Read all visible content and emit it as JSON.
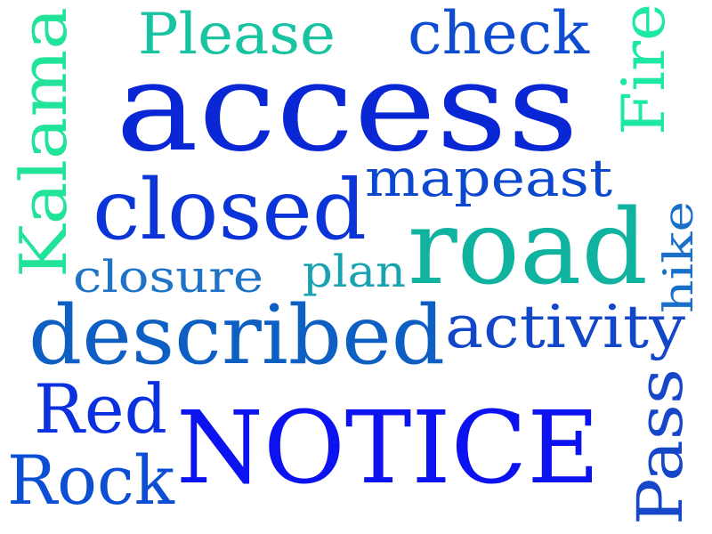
{
  "words": [
    {
      "id": "access",
      "text": "access",
      "color": "#0a27d6"
    },
    {
      "id": "notice",
      "text": "NOTICE",
      "color": "#0d12f0"
    },
    {
      "id": "road",
      "text": "road",
      "color": "#10b3a0"
    },
    {
      "id": "described",
      "text": "described",
      "color": "#0d5fc4"
    },
    {
      "id": "closed",
      "text": "closed",
      "color": "#0b35d8"
    },
    {
      "id": "activity",
      "text": "activity",
      "color": "#1347c9"
    },
    {
      "id": "kalama",
      "text": "Kalama",
      "color": "#22e39a"
    },
    {
      "id": "please",
      "text": "Please",
      "color": "#17c3a0"
    },
    {
      "id": "check",
      "text": "check",
      "color": "#0e4cd1"
    },
    {
      "id": "fire",
      "text": "Fire",
      "color": "#1ee9a4"
    },
    {
      "id": "mapeast",
      "text": "mapeast",
      "color": "#0b47cf"
    },
    {
      "id": "closure",
      "text": "closure",
      "color": "#1e73c8"
    },
    {
      "id": "plan",
      "text": "plan",
      "color": "#19a3b0"
    },
    {
      "id": "hike",
      "text": "hike",
      "color": "#1a6fc8"
    },
    {
      "id": "red",
      "text": "Red",
      "color": "#0b30e0"
    },
    {
      "id": "rock",
      "text": "Rock",
      "color": "#0c4fd4"
    },
    {
      "id": "pass",
      "text": "Pass",
      "color": "#1747c9"
    }
  ]
}
